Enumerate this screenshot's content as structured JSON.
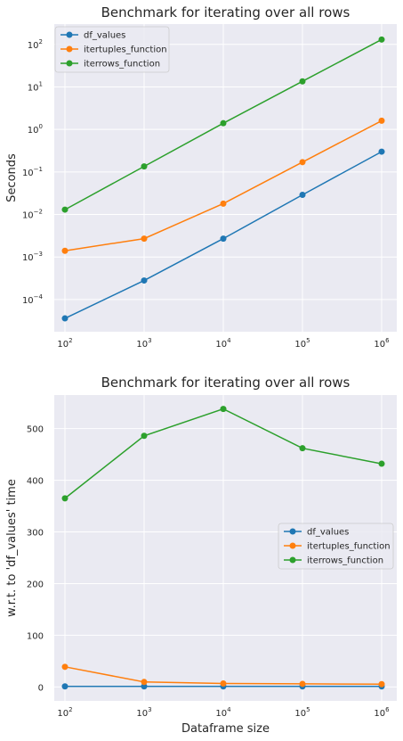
{
  "chart_data": [
    {
      "type": "line",
      "title": "Benchmark for iterating over all rows",
      "xlabel": "",
      "ylabel": "Seconds",
      "xscale": "log",
      "yscale": "log",
      "x": [
        100,
        1000,
        10000,
        100000,
        1000000
      ],
      "x_tick_labels": [
        {
          "base": "10",
          "exp": "2"
        },
        {
          "base": "10",
          "exp": "3"
        },
        {
          "base": "10",
          "exp": "4"
        },
        {
          "base": "10",
          "exp": "5"
        },
        {
          "base": "10",
          "exp": "6"
        }
      ],
      "y_tick_labels": [
        {
          "value": 0.0001,
          "base": "10",
          "exp": "−4"
        },
        {
          "value": 0.001,
          "base": "10",
          "exp": "−3"
        },
        {
          "value": 0.01,
          "base": "10",
          "exp": "−2"
        },
        {
          "value": 0.1,
          "base": "10",
          "exp": "−1"
        },
        {
          "value": 1,
          "base": "10",
          "exp": "0"
        },
        {
          "value": 10,
          "base": "10",
          "exp": "1"
        },
        {
          "value": 100,
          "base": "10",
          "exp": "2"
        }
      ],
      "ylim": [
        1.75e-05,
        300
      ],
      "grid": true,
      "legend": "top-left",
      "series": [
        {
          "name": "df_values",
          "color": "#1f77b4",
          "values": [
            3.6e-05,
            0.00028,
            0.0027,
            0.029,
            0.3
          ]
        },
        {
          "name": "itertuples_function",
          "color": "#ff7f0e",
          "values": [
            0.0014,
            0.0027,
            0.018,
            0.17,
            1.6
          ]
        },
        {
          "name": "iterrows_function",
          "color": "#2ca02c",
          "values": [
            0.013,
            0.135,
            1.4,
            13.5,
            130
          ]
        }
      ]
    },
    {
      "type": "line",
      "title": "Benchmark for iterating over all rows",
      "xlabel": "Dataframe size",
      "ylabel": "w.r.t. to 'df_values' time",
      "xscale": "log",
      "yscale": "linear",
      "x": [
        100,
        1000,
        10000,
        100000,
        1000000
      ],
      "x_tick_labels": [
        {
          "base": "10",
          "exp": "2"
        },
        {
          "base": "10",
          "exp": "3"
        },
        {
          "base": "10",
          "exp": "4"
        },
        {
          "base": "10",
          "exp": "5"
        },
        {
          "base": "10",
          "exp": "6"
        }
      ],
      "y_ticks": [
        0,
        100,
        200,
        300,
        400,
        500
      ],
      "ylim": [
        -27,
        565
      ],
      "grid": true,
      "legend": "center-right",
      "series": [
        {
          "name": "df_values",
          "color": "#1f77b4",
          "values": [
            1,
            1,
            1,
            1,
            1
          ]
        },
        {
          "name": "itertuples_function",
          "color": "#ff7f0e",
          "values": [
            38.9,
            9.6,
            6.7,
            5.9,
            5.3
          ]
        },
        {
          "name": "iterrows_function",
          "color": "#2ca02c",
          "values": [
            365,
            486,
            538,
            462,
            432
          ]
        }
      ]
    }
  ]
}
